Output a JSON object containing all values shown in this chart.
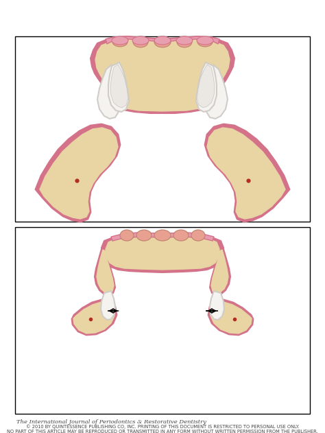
{
  "figure_width": 4.74,
  "figure_height": 6.31,
  "dpi": 100,
  "bg_color": "#ffffff",
  "bone_color": "#e8d5a3",
  "bone_color2": "#ede0b8",
  "gum_color": "#d4728a",
  "gum_light": "#e89ab0",
  "tooth_color": "#f5f3f0",
  "tooth_shadow": "#e0ddd8",
  "gum_pink": "#e8a0b0",
  "dot_color": "#b03020",
  "footer_text1": "The International Journal of Periodontics & Restorative Dentistry",
  "footer_text2": "© 2010 BY QUINTESSENCE PUBLISHING CO, INC. PRINTING OF THIS DOCUMENT IS RESTRICTED TO PERSONAL USE ONLY.\nNO PART OF THIS ARTICLE MAY BE REPRODUCED OR TRANSMITTED IN ANY FORM WITHOUT WRITTEN PERMISSION FROM THE PUBLISHER.",
  "footer_color": "#444444",
  "footer_size1": 6.0,
  "footer_size2": 4.8
}
